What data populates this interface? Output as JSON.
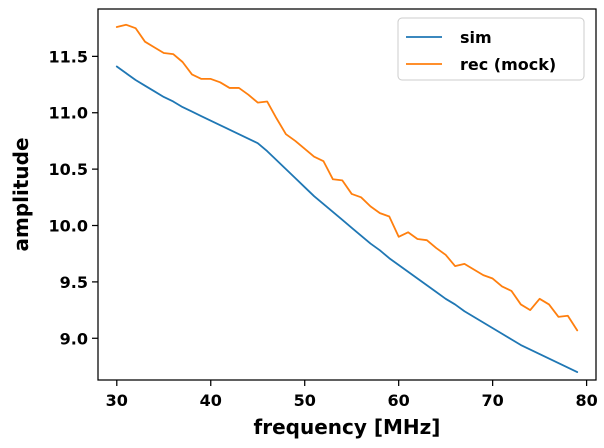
{
  "chart_data": {
    "type": "line",
    "title": "",
    "xlabel": "frequency [MHz]",
    "ylabel": "amplitude",
    "xlim": [
      28,
      81
    ],
    "ylim": [
      8.63,
      11.92
    ],
    "xticks": [
      30,
      40,
      50,
      60,
      70,
      80
    ],
    "yticks": [
      9.0,
      9.5,
      10.0,
      10.5,
      11.0,
      11.5
    ],
    "xtick_labels": [
      "30",
      "40",
      "50",
      "60",
      "70",
      "80"
    ],
    "ytick_labels": [
      "9.0",
      "9.5",
      "10.0",
      "10.5",
      "11.0",
      "11.5"
    ],
    "grid": false,
    "legend_position": "top-right",
    "series": [
      {
        "name": "sim",
        "color": "#1f77b4",
        "x": [
          30,
          31,
          32,
          33,
          34,
          35,
          36,
          37,
          38,
          39,
          40,
          41,
          42,
          43,
          44,
          45,
          46,
          47,
          48,
          49,
          50,
          51,
          52,
          53,
          54,
          55,
          56,
          57,
          58,
          59,
          60,
          61,
          62,
          63,
          64,
          65,
          66,
          67,
          68,
          69,
          70,
          71,
          72,
          73,
          74,
          75,
          76,
          77,
          78,
          79
        ],
        "y": [
          11.41,
          11.35,
          11.29,
          11.24,
          11.19,
          11.14,
          11.1,
          11.05,
          11.01,
          10.97,
          10.93,
          10.89,
          10.85,
          10.81,
          10.77,
          10.73,
          10.66,
          10.58,
          10.5,
          10.42,
          10.34,
          10.26,
          10.19,
          10.12,
          10.05,
          9.98,
          9.91,
          9.84,
          9.78,
          9.71,
          9.65,
          9.59,
          9.53,
          9.47,
          9.41,
          9.35,
          9.3,
          9.24,
          9.19,
          9.14,
          9.09,
          9.04,
          8.99,
          8.94,
          8.9,
          8.86,
          8.82,
          8.78,
          8.74,
          8.7
        ]
      },
      {
        "name": "rec (mock)",
        "color": "#ff7f0e",
        "x": [
          30,
          31,
          32,
          33,
          34,
          35,
          36,
          37,
          38,
          39,
          40,
          41,
          42,
          43,
          44,
          45,
          46,
          47,
          48,
          49,
          50,
          51,
          52,
          53,
          54,
          55,
          56,
          57,
          58,
          59,
          60,
          61,
          62,
          63,
          64,
          65,
          66,
          67,
          68,
          69,
          70,
          71,
          72,
          73,
          74,
          75,
          76,
          77,
          78,
          79
        ],
        "y": [
          11.76,
          11.78,
          11.75,
          11.63,
          11.58,
          11.53,
          11.52,
          11.45,
          11.34,
          11.3,
          11.3,
          11.27,
          11.22,
          11.22,
          11.16,
          11.09,
          11.1,
          10.95,
          10.81,
          10.75,
          10.68,
          10.61,
          10.57,
          10.41,
          10.4,
          10.28,
          10.25,
          10.17,
          10.11,
          10.08,
          9.9,
          9.94,
          9.88,
          9.87,
          9.8,
          9.74,
          9.64,
          9.66,
          9.61,
          9.56,
          9.53,
          9.46,
          9.42,
          9.3,
          9.25,
          9.35,
          9.3,
          9.19,
          9.2,
          9.07
        ]
      }
    ]
  }
}
